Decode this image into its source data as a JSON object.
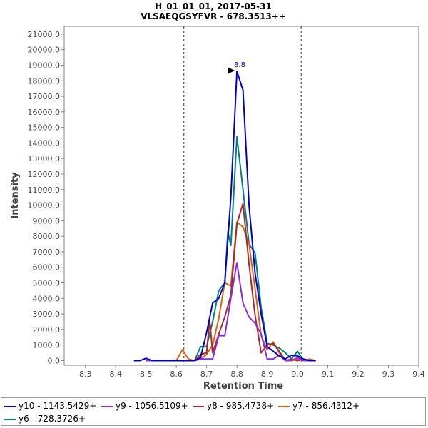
{
  "chart_data": {
    "type": "line",
    "title": "H_01_01_01, 2017-05-31",
    "subtitle": "VLSAEQGSYFVR - 678.3513++",
    "xlabel": "Retention Time",
    "ylabel": "Intensity",
    "xlim": [
      8.23,
      9.4
    ],
    "ylim": [
      -300,
      21500
    ],
    "x_ticks": [
      "8.3",
      "8.4",
      "8.5",
      "8.6",
      "8.7",
      "8.8",
      "8.9",
      "9.0",
      "9.1",
      "9.2",
      "9.3",
      "9.4"
    ],
    "y_ticks": [
      "0.0",
      "1000.0",
      "2000.0",
      "3000.0",
      "4000.0",
      "5000.0",
      "6000.0",
      "7000.0",
      "8000.0",
      "9000.0",
      "10000.0",
      "11000.0",
      "12000.0",
      "13000.0",
      "14000.0",
      "15000.0",
      "16000.0",
      "17000.0",
      "18000.0",
      "19000.0",
      "20000.0",
      "21000.0"
    ],
    "boundaries": [
      8.625,
      9.012
    ],
    "peak_annotation": {
      "label": "8.8",
      "x": 8.8,
      "y": 18600
    },
    "legend_position": "bottom",
    "series": [
      {
        "name": "y10 - 1143.5429+",
        "color": "#0000cc",
        "x": [
          8.46,
          8.48,
          8.5,
          8.52,
          8.54,
          8.56,
          8.58,
          8.6,
          8.62,
          8.64,
          8.66,
          8.68,
          8.7,
          8.72,
          8.74,
          8.76,
          8.78,
          8.8,
          8.82,
          8.84,
          8.86,
          8.88,
          8.9,
          8.92,
          8.94,
          8.96,
          8.98,
          9.0,
          9.02,
          9.04,
          9.06
        ],
        "y": [
          0,
          0,
          150,
          0,
          0,
          0,
          0,
          0,
          0,
          0,
          0,
          200,
          1800,
          3700,
          4000,
          5000,
          10500,
          18600,
          17400,
          10000,
          5600,
          3000,
          900,
          600,
          300,
          100,
          350,
          300,
          100,
          0,
          0
        ]
      },
      {
        "name": "y9 - 1056.5109+",
        "color": "#8a2be2",
        "x": [
          8.5,
          8.52,
          8.6,
          8.66,
          8.68,
          8.7,
          8.72,
          8.74,
          8.76,
          8.78,
          8.8,
          8.82,
          8.84,
          8.86,
          8.88,
          8.9,
          8.92,
          8.94,
          8.96,
          8.98,
          9.0,
          9.02,
          9.04,
          9.06
        ],
        "y": [
          0,
          0,
          0,
          0,
          100,
          100,
          100,
          1600,
          1600,
          4000,
          6300,
          3700,
          2800,
          2400,
          1700,
          100,
          100,
          350,
          0,
          0,
          200,
          0,
          0,
          0
        ]
      },
      {
        "name": "y8 - 985.4738+",
        "color": "#a52a2a",
        "x": [
          8.6,
          8.62,
          8.64,
          8.66,
          8.68,
          8.7,
          8.71,
          8.72,
          8.74,
          8.76,
          8.78,
          8.8,
          8.82,
          8.84,
          8.86,
          8.88,
          8.9,
          8.92,
          8.94,
          8.96,
          8.98,
          9.0,
          9.02,
          9.04,
          9.06
        ],
        "y": [
          0,
          0,
          0,
          0,
          400,
          500,
          2600,
          500,
          1700,
          2800,
          4200,
          8800,
          10100,
          6200,
          2900,
          500,
          1000,
          1100,
          600,
          0,
          100,
          0,
          100,
          0,
          0
        ]
      },
      {
        "name": "y7 - 856.4312+",
        "color": "#e06010",
        "x": [
          8.58,
          8.6,
          8.62,
          8.64,
          8.66,
          8.68,
          8.7,
          8.72,
          8.74,
          8.76,
          8.78,
          8.8,
          8.82,
          8.84,
          8.86,
          8.88,
          8.9,
          8.92,
          8.94,
          8.96,
          8.98,
          9.0,
          9.02,
          9.04,
          9.06
        ],
        "y": [
          0,
          0,
          700,
          100,
          0,
          100,
          400,
          1000,
          2700,
          5000,
          4800,
          8900,
          8600,
          7500,
          4600,
          1600,
          700,
          1200,
          500,
          0,
          0,
          100,
          0,
          100,
          0
        ]
      },
      {
        "name": "y6 - 728.3726+",
        "color": "#008080",
        "x": [
          8.6,
          8.62,
          8.64,
          8.66,
          8.68,
          8.7,
          8.72,
          8.74,
          8.76,
          8.77,
          8.78,
          8.8,
          8.82,
          8.84,
          8.86,
          8.88,
          8.9,
          8.92,
          8.94,
          8.96,
          8.98,
          9.0,
          9.02,
          9.04,
          9.06
        ],
        "y": [
          0,
          0,
          0,
          0,
          900,
          900,
          2500,
          4500,
          5000,
          8300,
          7400,
          14400,
          11000,
          7500,
          6900,
          3400,
          1100,
          1000,
          800,
          500,
          100,
          600,
          0,
          0,
          0
        ]
      }
    ]
  }
}
